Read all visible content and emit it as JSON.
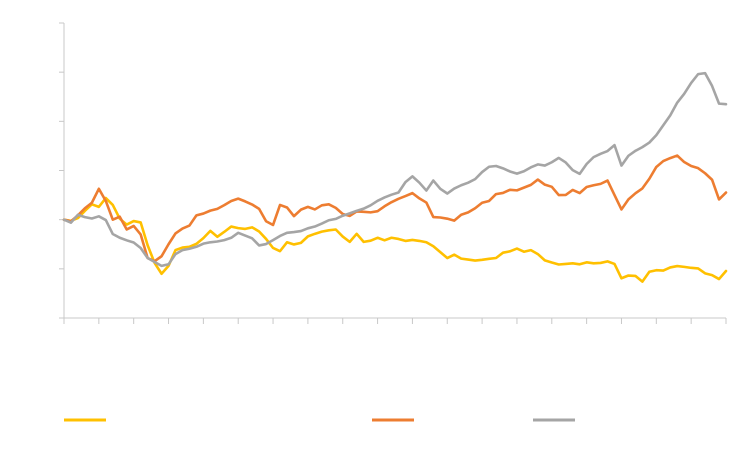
{
  "chart_data": {
    "type": "line",
    "title": "",
    "xlabel": "",
    "ylabel": "",
    "ylim": [
      0,
      150
    ],
    "yticks": [
      0,
      25,
      50,
      75,
      100,
      125,
      150
    ],
    "ytick_labels": [
      "",
      "",
      "",
      "",
      "",
      "",
      ""
    ],
    "x_count": 96,
    "xtick_positions": [
      0,
      5,
      10,
      15,
      20,
      25,
      30,
      35,
      40,
      45,
      50,
      55,
      60,
      65,
      70,
      75,
      80,
      85,
      90,
      95
    ],
    "xtick_labels": [
      "",
      "",
      "",
      "",
      "",
      "",
      "",
      "",
      "",
      "",
      "",
      "",
      "",
      "",
      "",
      "",
      "",
      "",
      "",
      ""
    ],
    "grid": false,
    "legend_position": "bottom",
    "series": [
      {
        "name": "",
        "color": "#ffc000",
        "values": [
          50,
          49.4,
          50.8,
          54.5,
          57.8,
          56.5,
          61,
          57.5,
          50.5,
          47.5,
          49.3,
          48.6,
          37,
          28,
          22.5,
          26.5,
          34.5,
          35.8,
          36.2,
          37.7,
          40.6,
          44.3,
          41.3,
          43.8,
          46.5,
          45.7,
          45.3,
          46.1,
          44,
          40.2,
          35.6,
          34,
          38.5,
          37.4,
          38.2,
          41.5,
          42.8,
          43.9,
          44.6,
          45,
          41.4,
          38.7,
          42.8,
          38.7,
          39.3,
          40.8,
          39.5,
          40.8,
          40.2,
          39.2,
          39.7,
          39.2,
          38.5,
          36.5,
          33.5,
          30.5,
          32.2,
          30.2,
          29.7,
          29.2,
          29.6,
          30.1,
          30.5,
          33.2,
          33.9,
          35.3,
          33.7,
          34.5,
          32.5,
          29.3,
          28.2,
          27.2,
          27.5,
          27.8,
          27.3,
          28.3,
          27.8,
          28,
          28.8,
          27.5,
          20.2,
          21.6,
          21.4,
          18.5,
          23.5,
          24.3,
          24.1,
          25.7,
          26.4,
          26,
          25.5,
          25.2,
          22.7,
          21.8,
          19.8,
          23.9
        ]
      },
      {
        "name": "",
        "color": "#ed7d31",
        "values": [
          50,
          49.2,
          52.2,
          55.8,
          58.6,
          65.7,
          59.5,
          50,
          51.5,
          45,
          46.8,
          42.5,
          30.5,
          28.9,
          31.4,
          37.5,
          43,
          45.5,
          47,
          52.2,
          53.1,
          54.6,
          55.5,
          57.4,
          59.5,
          60.7,
          59.3,
          57.7,
          55.5,
          49.2,
          47.3,
          57.5,
          56.2,
          51.8,
          55.1,
          56.5,
          55.2,
          57.3,
          57.8,
          56,
          52.9,
          51.9,
          54.2,
          54,
          53.7,
          54.3,
          56.8,
          58.9,
          60.6,
          62,
          63.5,
          60.8,
          58.7,
          51.3,
          51.1,
          50.5,
          49.5,
          52.5,
          53.7,
          55.8,
          58.6,
          59.5,
          63,
          63.6,
          65.2,
          64.9,
          66.3,
          67.7,
          70.4,
          67.8,
          66.7,
          62.5,
          62.6,
          65.1,
          63.5,
          66.6,
          67.5,
          68.2,
          69.9,
          62.5,
          55.2,
          60.3,
          63.4,
          65.9,
          70.8,
          76.8,
          79.8,
          81.3,
          82.6,
          79.3,
          77.3,
          76.2,
          73.6,
          70.3,
          60.3,
          63.8
        ]
      },
      {
        "name": "",
        "color": "#a5a5a5",
        "values": [
          50,
          48.5,
          52.5,
          51.3,
          50.6,
          51.7,
          49.8,
          42.7,
          40.8,
          39.5,
          38.4,
          35.6,
          30.5,
          28.5,
          26.5,
          27.3,
          32.5,
          34.5,
          35.2,
          36.2,
          37.8,
          38.5,
          38.9,
          39.6,
          40.8,
          43.3,
          41.9,
          40.5,
          36.9,
          37.6,
          39.6,
          41.7,
          43.3,
          43.7,
          44.2,
          45.6,
          46.5,
          48,
          49.7,
          50.4,
          52,
          53.2,
          54.5,
          55.6,
          57.3,
          59.6,
          61.3,
          62.7,
          63.8,
          69.1,
          72,
          68.8,
          64.8,
          69.9,
          65.7,
          63.3,
          65.8,
          67.5,
          68.8,
          70.6,
          74.2,
          76.9,
          77.3,
          76.1,
          74.5,
          73.4,
          74.6,
          76.6,
          78.1,
          77.5,
          79.2,
          81.4,
          79.1,
          75.2,
          73.3,
          78.3,
          81.8,
          83.5,
          84.9,
          87.9,
          77.5,
          82.5,
          85,
          86.9,
          89.2,
          93,
          98,
          103,
          109.5,
          114,
          119.5,
          124,
          124.5,
          118,
          109,
          108.7
        ]
      }
    ]
  }
}
